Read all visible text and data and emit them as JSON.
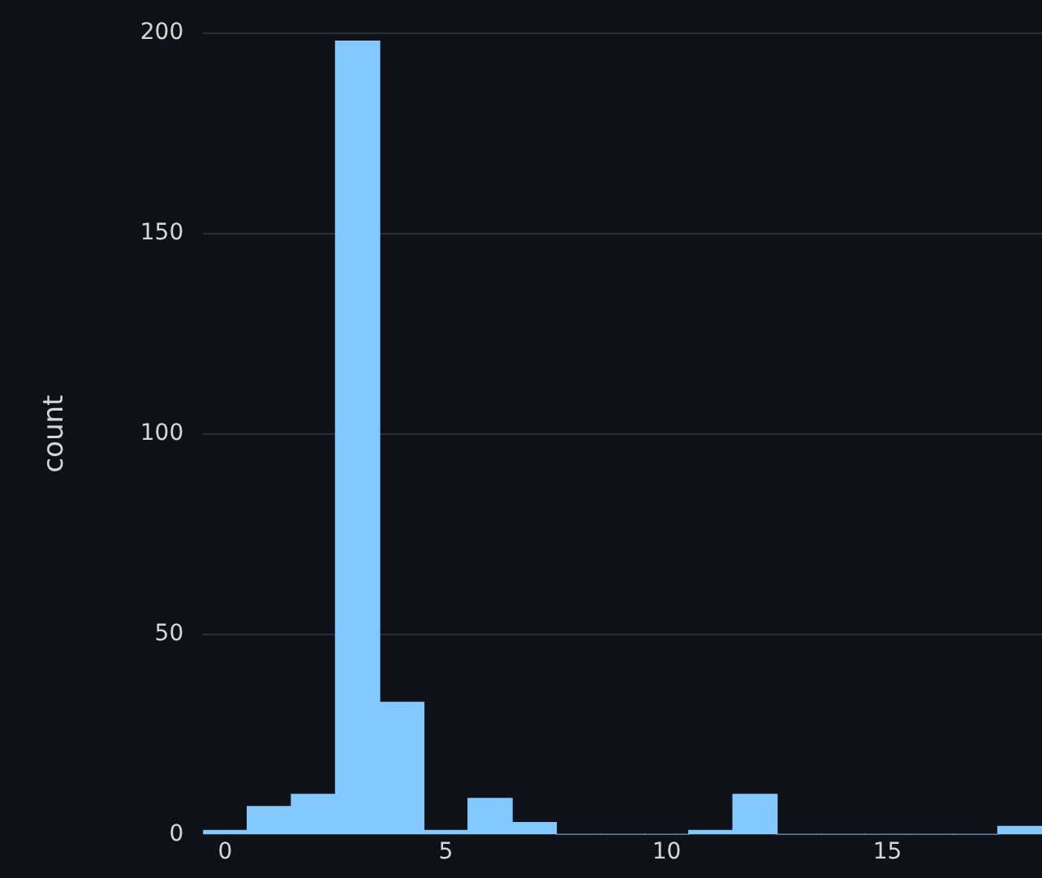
{
  "chart_data": {
    "type": "histogram",
    "ylabel": "count",
    "bins": [
      -0.5,
      0.5,
      1.5,
      2.5,
      3.5,
      4.5,
      5.5,
      6.5,
      7.5,
      8.5,
      9.5,
      10.5,
      11.5,
      12.5,
      13.5,
      14.5,
      15.5,
      16.5,
      17.5,
      18.5
    ],
    "values": [
      1,
      7,
      10,
      198,
      33,
      1,
      9,
      3,
      0,
      0,
      0,
      1,
      10,
      0,
      0,
      0,
      0,
      0,
      2
    ],
    "color": "#83c9ff",
    "xlim": [
      -0.5,
      18.5
    ],
    "xticks": [
      0,
      5,
      10,
      15
    ],
    "ylim": [
      0,
      200
    ],
    "yticks": [
      0,
      50,
      100,
      150,
      200
    ],
    "grid": "y",
    "legend": false
  }
}
